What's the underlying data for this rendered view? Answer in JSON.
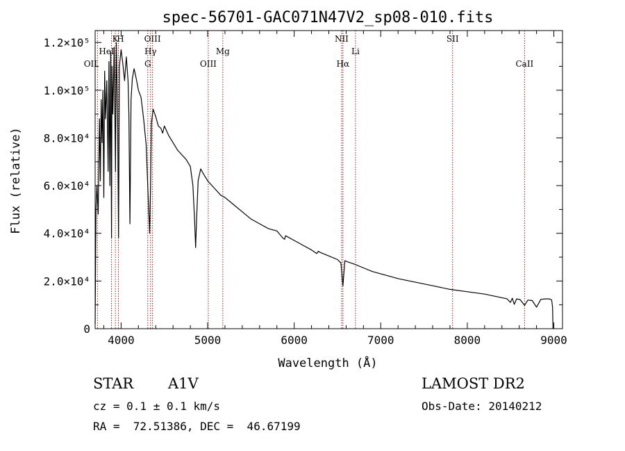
{
  "chart_data": {
    "type": "line",
    "title": "spec-56701-GAC071N47V2_sp08-010.fits",
    "xlabel": "Wavelength (Å)",
    "ylabel": "Flux (relative)",
    "xlim": [
      3700,
      9100
    ],
    "ylim": [
      0,
      125000
    ],
    "x_ticks": [
      4000,
      5000,
      6000,
      7000,
      8000,
      9000
    ],
    "x_tick_labels": [
      "4000",
      "5000",
      "6000",
      "7000",
      "8000",
      "9000"
    ],
    "y_ticks": [
      0,
      20000,
      40000,
      60000,
      80000,
      100000,
      120000
    ],
    "y_tick_labels": [
      "0",
      "2.0×10⁴",
      "4.0×10⁴",
      "6.0×10⁴",
      "8.0×10⁴",
      "1.0×10⁵",
      "1.2×10⁵"
    ],
    "grid": false,
    "line_color": "#000000",
    "marker_color": "#8b1a1a",
    "series": [
      {
        "x": [
          3700,
          3710,
          3720,
          3735,
          3750,
          3760,
          3770,
          3780,
          3790,
          3800,
          3810,
          3820,
          3835,
          3850,
          3860,
          3870,
          3880,
          3889,
          3895,
          3905,
          3920,
          3935,
          3945,
          3960,
          3970,
          3980,
          4000,
          4020,
          4040,
          4060,
          4080,
          4090,
          4102,
          4115,
          4130,
          4150,
          4180,
          4200,
          4230,
          4260,
          4290,
          4310,
          4330,
          4340,
          4350,
          4370,
          4400,
          4430,
          4460,
          4480,
          4500,
          4550,
          4600,
          4650,
          4700,
          4750,
          4800,
          4830,
          4850,
          4861,
          4872,
          4890,
          4920,
          4950,
          5000,
          5050,
          5100,
          5150,
          5200,
          5300,
          5400,
          5500,
          5600,
          5700,
          5800,
          5870,
          5890,
          5900,
          6000,
          6100,
          6200,
          6260,
          6280,
          6300,
          6400,
          6500,
          6540,
          6563,
          6585,
          6620,
          6700,
          6800,
          6900,
          7000,
          7200,
          7400,
          7600,
          7800,
          8000,
          8200,
          8400,
          8460,
          8498,
          8520,
          8542,
          8570,
          8610,
          8662,
          8700,
          8750,
          8800,
          8850,
          8900,
          8950,
          8975,
          8985,
          8990
        ],
        "y": [
          2000,
          50000,
          60000,
          48000,
          88000,
          62000,
          96000,
          78000,
          100000,
          55000,
          108000,
          88000,
          104000,
          66000,
          112000,
          60000,
          116000,
          38000,
          110000,
          90000,
          118000,
          66000,
          120000,
          88000,
          38000,
          110000,
          117000,
          111000,
          104000,
          114000,
          104000,
          90000,
          44000,
          96000,
          105000,
          109000,
          104000,
          100000,
          97000,
          88000,
          77000,
          58000,
          40000,
          60000,
          86000,
          92000,
          89000,
          85000,
          84000,
          82000,
          85000,
          81000,
          78000,
          75000,
          73000,
          71000,
          68000,
          60000,
          45000,
          34000,
          46000,
          62000,
          67000,
          65000,
          62000,
          60000,
          58000,
          56000,
          55000,
          52000,
          49000,
          46000,
          44000,
          42000,
          41000,
          38000,
          37500,
          39000,
          37000,
          35000,
          33000,
          31500,
          32500,
          32000,
          30500,
          29000,
          27500,
          18000,
          28500,
          28000,
          27000,
          25500,
          24000,
          23000,
          21000,
          19500,
          18000,
          16500,
          15500,
          14500,
          13000,
          12500,
          11000,
          12800,
          10200,
          12500,
          12200,
          9800,
          12000,
          11800,
          9000,
          12300,
          12500,
          12500,
          12000,
          9000,
          0
        ]
      }
    ],
    "lines": [
      {
        "label": "OII",
        "x": 3727
      },
      {
        "label": "K",
        "x": 3934
      },
      {
        "label": "H",
        "x": 3969
      },
      {
        "label": "HeI",
        "x": 3889
      },
      {
        "label": "G",
        "x": 4308
      },
      {
        "label": "Hγ",
        "x": 4340
      },
      {
        "label": "OIII",
        "x": 4363
      },
      {
        "label": "OIII",
        "x": 5007
      },
      {
        "label": "Mg",
        "x": 5175
      },
      {
        "label": "NII",
        "x": 6548
      },
      {
        "label": "Hα",
        "x": 6563
      },
      {
        "label": "Li",
        "x": 6708
      },
      {
        "label": "SII",
        "x": 7830
      },
      {
        "label": "CaII",
        "x": 8662
      }
    ]
  },
  "info": {
    "object_class": "STAR",
    "subclass": "A1V",
    "survey": "LAMOST DR2",
    "redshift": "cz = 0.1 ± 0.1 km/s",
    "obs_date": "Obs-Date: 20140212",
    "coords": "RA =  72.51386, DEC =  46.67199"
  }
}
